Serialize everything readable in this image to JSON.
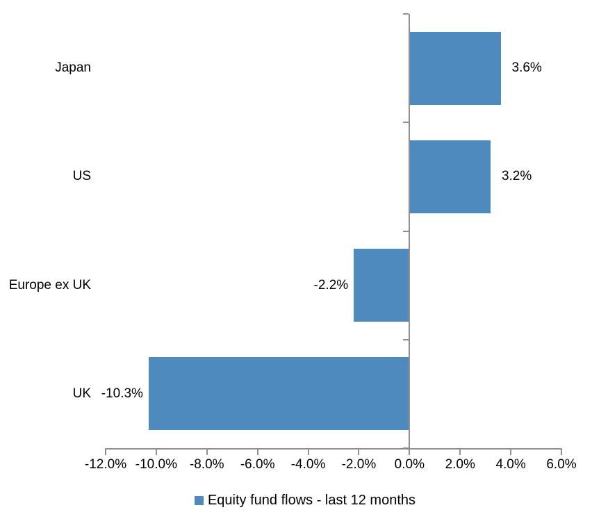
{
  "chart_data": {
    "type": "bar",
    "orientation": "horizontal",
    "title": "",
    "xlabel": "",
    "ylabel": "",
    "categories": [
      "Japan",
      "US",
      "Europe ex UK",
      "UK"
    ],
    "series": [
      {
        "name": "Equity fund flows - last 12 months",
        "values": [
          3.6,
          3.2,
          -2.2,
          -10.3
        ],
        "value_labels": [
          "3.6%",
          "3.2%",
          "-2.2%",
          "-10.3%"
        ]
      }
    ],
    "xlim": [
      -12,
      6
    ],
    "x_ticks": [
      -12,
      -10,
      -8,
      -6,
      -4,
      -2,
      0,
      2,
      4,
      6
    ],
    "x_tick_labels": [
      "-12.0%",
      "-10.0%",
      "-8.0%",
      "-6.0%",
      "-4.0%",
      "-2.0%",
      "0.0%",
      "2.0%",
      "4.0%",
      "6.0%"
    ],
    "grid": false,
    "legend": {
      "position": "bottom",
      "label": "Equity fund flows - last 12 months"
    },
    "colors": {
      "bar": "#4e8abe",
      "axis": "#8f8f8f",
      "text": "#000000",
      "background": "#ffffff"
    }
  }
}
